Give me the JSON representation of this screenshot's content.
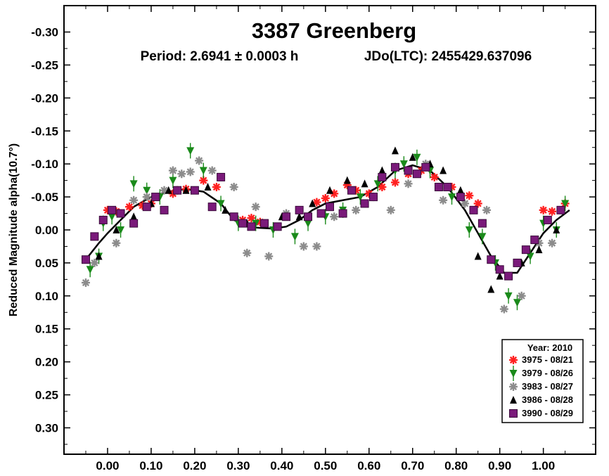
{
  "chart_data": {
    "type": "scatter",
    "title": "3387 Greenberg",
    "subtitle_period": "Period: 2.6941 ± 0.0003 h",
    "subtitle_jdo": "JDo(LTC): 2455429.637096",
    "xlabel": "",
    "ylabel": "Reduced Magnitude alpha(10.7°)",
    "xlim": [
      -0.1,
      1.12
    ],
    "ylim": [
      0.34,
      -0.34
    ],
    "y_inverted": true,
    "x_ticks": [
      "0.00",
      "0.10",
      "0.20",
      "0.30",
      "0.40",
      "0.50",
      "0.60",
      "0.70",
      "0.80",
      "0.90",
      "1.00"
    ],
    "y_ticks": [
      "-0.30",
      "-0.25",
      "-0.20",
      "-0.15",
      "-0.10",
      "-0.05",
      "0.00",
      "0.05",
      "0.10",
      "0.15",
      "0.20",
      "0.25",
      "0.30"
    ],
    "grid": false,
    "legend_position": "bottom-right",
    "legend_title": "Year: 2010",
    "colors": {
      "s3975": "#ff2020",
      "s3979": "#1a8a1a",
      "s3983": "#8c8c8c",
      "s3986": "#000000",
      "s3990": "#7a1a7a"
    },
    "series": [
      {
        "name": "3975 - 08/21",
        "marker": "red-asterisk",
        "x": [
          0.0,
          0.02,
          0.05,
          0.08,
          0.1,
          0.15,
          0.16,
          0.18,
          0.22,
          0.25,
          0.31,
          0.33,
          0.35,
          0.48,
          0.5,
          0.52,
          0.55,
          0.57,
          0.6,
          0.63,
          0.66,
          0.69,
          0.72,
          0.75,
          0.79,
          0.83,
          0.85,
          1.0,
          1.02,
          1.05
        ],
        "y": [
          -0.03,
          -0.028,
          -0.035,
          -0.037,
          -0.04,
          -0.055,
          -0.06,
          -0.062,
          -0.075,
          -0.065,
          -0.015,
          -0.018,
          -0.012,
          -0.042,
          -0.048,
          -0.055,
          -0.068,
          -0.06,
          -0.055,
          -0.065,
          -0.072,
          -0.085,
          -0.09,
          -0.08,
          -0.065,
          -0.052,
          -0.04,
          -0.03,
          -0.028,
          -0.04
        ]
      },
      {
        "name": "3979 - 08/26",
        "marker": "green-triangle-down",
        "x": [
          -0.04,
          -0.02,
          -0.01,
          0.01,
          0.03,
          0.06,
          0.09,
          0.12,
          0.15,
          0.19,
          0.22,
          0.26,
          0.3,
          0.34,
          0.38,
          0.43,
          0.46,
          0.5,
          0.54,
          0.58,
          0.62,
          0.66,
          0.68,
          0.71,
          0.74,
          0.79,
          0.83,
          0.86,
          0.89,
          0.92,
          0.94,
          0.97,
          1.0,
          1.03,
          1.05
        ],
        "y": [
          0.06,
          0.04,
          -0.01,
          -0.02,
          0.0,
          -0.07,
          -0.06,
          -0.05,
          -0.075,
          -0.12,
          -0.09,
          -0.04,
          -0.01,
          -0.01,
          0.0,
          0.01,
          -0.01,
          -0.02,
          -0.03,
          -0.05,
          -0.07,
          -0.09,
          -0.1,
          -0.11,
          -0.09,
          -0.05,
          0.0,
          0.01,
          0.05,
          0.1,
          0.11,
          0.04,
          -0.01,
          0.0,
          -0.04
        ]
      },
      {
        "name": "3983 - 08/27",
        "marker": "gray-asterisk",
        "x": [
          -0.05,
          -0.03,
          0.02,
          0.06,
          0.09,
          0.13,
          0.15,
          0.17,
          0.19,
          0.21,
          0.24,
          0.29,
          0.32,
          0.34,
          0.37,
          0.41,
          0.45,
          0.48,
          0.52,
          0.57,
          0.61,
          0.65,
          0.69,
          0.73,
          0.77,
          0.82,
          0.87,
          0.91,
          0.95,
          0.99,
          1.02
        ],
        "y": [
          0.08,
          0.05,
          0.02,
          -0.045,
          -0.05,
          -0.06,
          -0.09,
          -0.085,
          -0.088,
          -0.105,
          -0.09,
          -0.065,
          0.035,
          -0.035,
          0.04,
          -0.025,
          0.025,
          0.025,
          -0.02,
          -0.03,
          -0.05,
          -0.03,
          -0.07,
          -0.1,
          -0.045,
          -0.04,
          -0.03,
          0.12,
          0.1,
          0.02,
          0.02
        ]
      },
      {
        "name": "3986 - 08/28",
        "marker": "black-triangle-up",
        "x": [
          -0.02,
          0.02,
          0.06,
          0.1,
          0.14,
          0.18,
          0.23,
          0.27,
          0.32,
          0.36,
          0.4,
          0.44,
          0.47,
          0.51,
          0.55,
          0.59,
          0.63,
          0.66,
          0.7,
          0.74,
          0.77,
          0.81,
          0.85,
          0.88,
          0.9,
          0.95,
          0.99,
          1.03
        ],
        "y": [
          0.04,
          0.0,
          -0.02,
          -0.04,
          -0.06,
          -0.06,
          -0.065,
          -0.03,
          -0.01,
          -0.01,
          -0.02,
          -0.02,
          -0.04,
          -0.06,
          -0.075,
          -0.07,
          -0.09,
          -0.12,
          -0.11,
          -0.1,
          -0.09,
          -0.06,
          0.04,
          0.09,
          0.07,
          0.05,
          0.03,
          0.0
        ]
      },
      {
        "name": "3990 - 08/29",
        "marker": "purple-square",
        "x": [
          -0.05,
          -0.03,
          -0.01,
          0.01,
          0.03,
          0.06,
          0.09,
          0.11,
          0.13,
          0.16,
          0.2,
          0.24,
          0.26,
          0.29,
          0.31,
          0.33,
          0.36,
          0.39,
          0.41,
          0.44,
          0.46,
          0.49,
          0.51,
          0.54,
          0.56,
          0.59,
          0.61,
          0.63,
          0.66,
          0.69,
          0.71,
          0.73,
          0.76,
          0.78,
          0.81,
          0.84,
          0.86,
          0.88,
          0.9,
          0.92,
          0.94,
          0.96,
          0.98,
          1.01,
          1.04
        ],
        "y": [
          0.045,
          0.01,
          -0.015,
          -0.03,
          -0.025,
          -0.01,
          -0.035,
          -0.05,
          -0.03,
          -0.06,
          -0.06,
          -0.035,
          -0.08,
          -0.02,
          -0.01,
          -0.005,
          -0.01,
          -0.005,
          -0.02,
          -0.03,
          -0.02,
          -0.025,
          -0.035,
          -0.025,
          -0.06,
          -0.04,
          -0.05,
          -0.08,
          -0.095,
          -0.09,
          -0.085,
          -0.095,
          -0.065,
          -0.065,
          -0.05,
          -0.03,
          -0.01,
          0.045,
          0.06,
          0.07,
          0.05,
          0.03,
          0.015,
          -0.015,
          -0.03
        ]
      }
    ],
    "fit_curve": {
      "x": [
        -0.05,
        -0.02,
        0.0,
        0.03,
        0.06,
        0.1,
        0.14,
        0.18,
        0.22,
        0.26,
        0.29,
        0.32,
        0.35,
        0.38,
        0.41,
        0.44,
        0.47,
        0.5,
        0.54,
        0.58,
        0.62,
        0.66,
        0.7,
        0.74,
        0.78,
        0.82,
        0.85,
        0.88,
        0.91,
        0.94,
        0.97,
        1.0,
        1.03,
        1.06
      ],
      "y": [
        0.045,
        0.02,
        0.005,
        -0.015,
        -0.035,
        -0.05,
        -0.058,
        -0.062,
        -0.058,
        -0.04,
        -0.015,
        -0.005,
        -0.003,
        -0.002,
        -0.005,
        -0.015,
        -0.03,
        -0.04,
        -0.045,
        -0.05,
        -0.065,
        -0.09,
        -0.098,
        -0.09,
        -0.065,
        -0.03,
        0.005,
        0.04,
        0.065,
        0.065,
        0.035,
        0.005,
        -0.015,
        -0.03
      ]
    }
  }
}
